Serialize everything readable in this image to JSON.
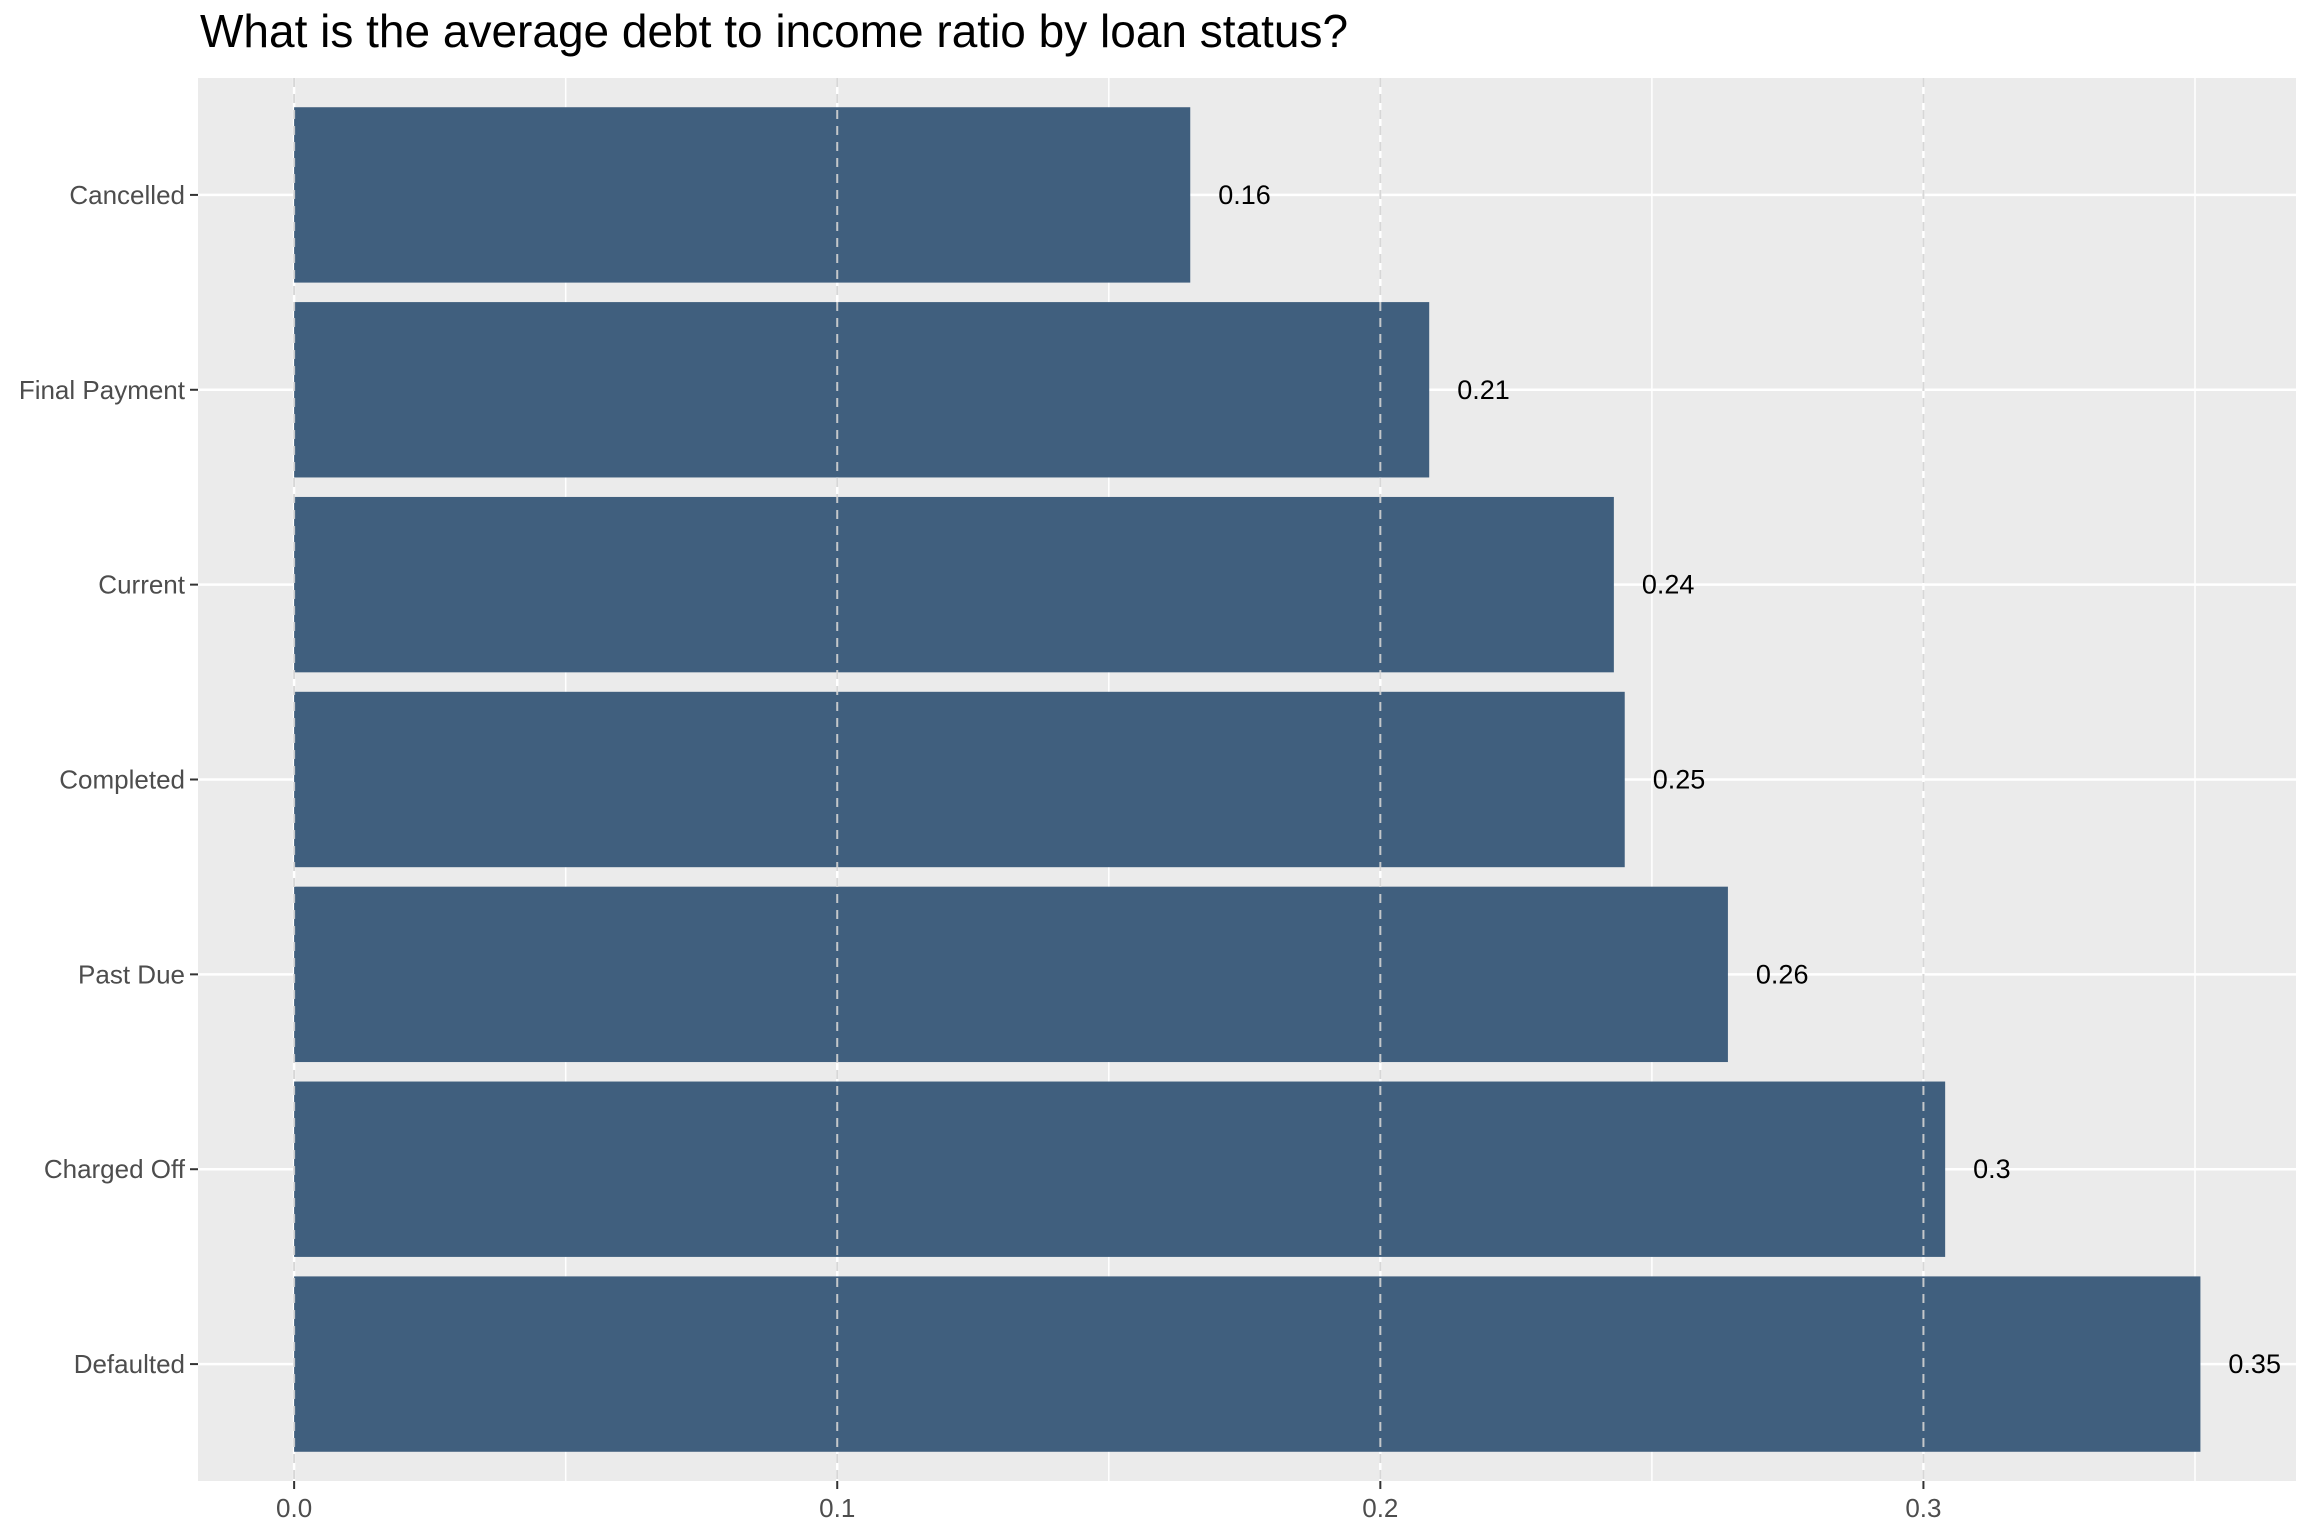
{
  "chart_data": {
    "type": "bar",
    "orientation": "horizontal",
    "title": "What is the average debt to income ratio by loan status?",
    "xlabel": "",
    "ylabel": "",
    "categories": [
      "Cancelled",
      "Final Payment",
      "Current",
      "Completed",
      "Past Due",
      "Charged Off",
      "Defaulted"
    ],
    "values": [
      0.165,
      0.209,
      0.243,
      0.245,
      0.264,
      0.304,
      0.351
    ],
    "data_labels": [
      "0.16",
      "0.21",
      "0.24",
      "0.25",
      "0.26",
      "0.3",
      "0.35"
    ],
    "xlim": [
      -0.0177,
      0.3686
    ],
    "x_ticks": [
      0,
      0.1,
      0.2,
      0.3
    ],
    "x_tick_labels": [
      "0.0",
      "0.1",
      "0.2",
      "0.3"
    ],
    "grid": true,
    "legend": "none",
    "colors": {
      "bar": "#405F7E",
      "panel_background": "#EBEBEB",
      "grid_major": "#FFFFFF",
      "grid_dashed": "#D3D3D3"
    }
  }
}
